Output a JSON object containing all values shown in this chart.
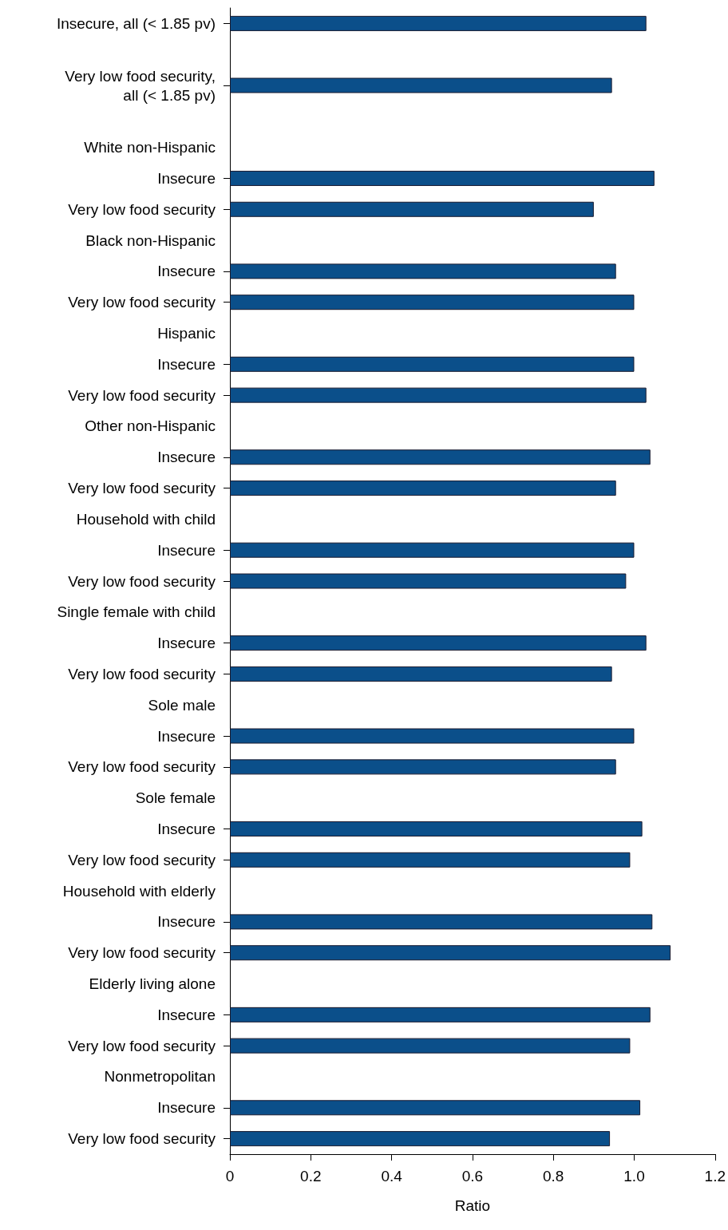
{
  "chart_data": {
    "type": "bar",
    "orientation": "horizontal",
    "xlabel": "Ratio",
    "categories": [
      "Insecure, all (< 1.85 pv)",
      null,
      "Very low food security,\nall (< 1.85 pv)",
      null,
      "White non-Hispanic",
      "Insecure",
      "Very low food security",
      "Black non-Hispanic",
      "Insecure",
      "Very low food security",
      "Hispanic",
      "Insecure",
      "Very low food security",
      "Other non-Hispanic",
      "Insecure",
      "Very low food security",
      "Household with child",
      "Insecure",
      "Very low food security",
      "Single female with child",
      "Insecure",
      "Very low food security",
      "Sole male",
      "Insecure",
      "Very low food security",
      "Sole female",
      "Insecure",
      "Very low food security",
      "Household with elderly",
      "Insecure",
      "Very low food security",
      "Elderly living alone",
      "Insecure",
      "Very low food security",
      "Nonmetropolitan",
      "Insecure",
      "Very low food security"
    ],
    "values": [
      1.03,
      null,
      0.945,
      null,
      null,
      1.05,
      0.9,
      null,
      0.955,
      1.0,
      null,
      1.0,
      1.03,
      null,
      1.04,
      0.955,
      null,
      1.0,
      0.98,
      null,
      1.03,
      0.945,
      null,
      1.0,
      0.955,
      null,
      1.02,
      0.99,
      null,
      1.045,
      1.09,
      null,
      1.04,
      0.99,
      null,
      1.015,
      0.94
    ],
    "color": "#0b4f8a",
    "xlim": [
      0,
      1.2
    ],
    "xticks": [
      0,
      0.2,
      0.4,
      0.6,
      0.8,
      {
        "value": 1.0,
        "label": "1.0"
      },
      1.2
    ],
    "grid": false
  }
}
